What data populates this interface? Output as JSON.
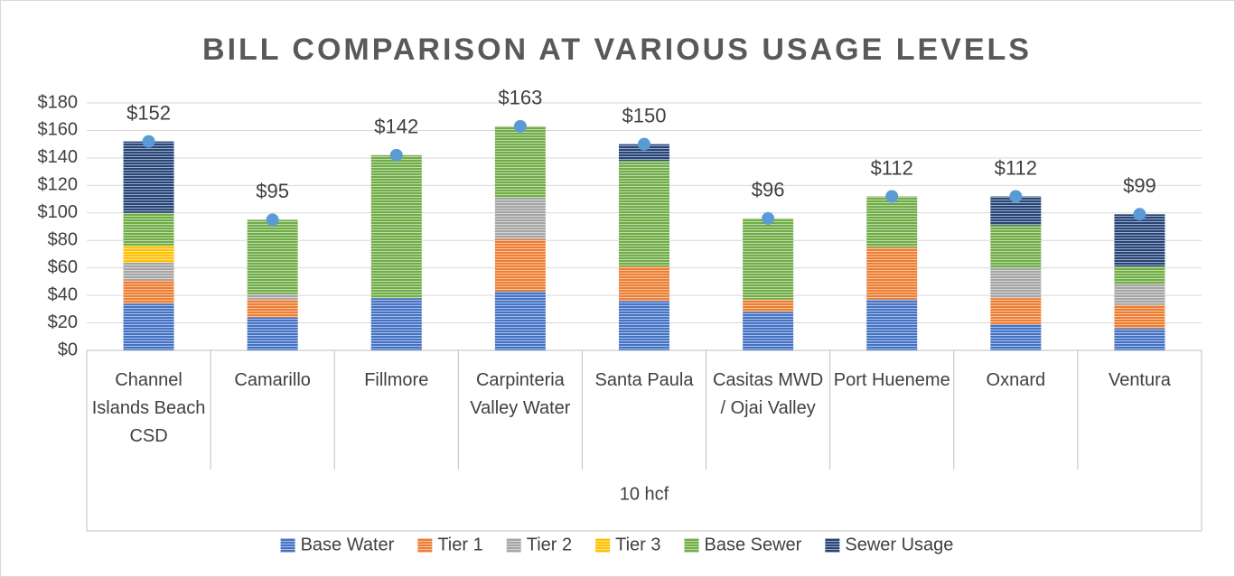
{
  "chart_data": {
    "type": "stacked_bar",
    "title": "BILL COMPARISON AT VARIOUS USAGE LEVELS",
    "group_label": "10 hcf",
    "categories": [
      "Channel Islands Beach CSD",
      "Camarillo",
      "Fillmore",
      "Carpinteria Valley Water",
      "Santa Paula",
      "Casitas MWD / Ojai Valley",
      "Port Hueneme",
      "Oxnard",
      "Ventura"
    ],
    "series": [
      {
        "name": "Base Water",
        "color": "#4472c4",
        "values": [
          34,
          24,
          38,
          43,
          36,
          28,
          37,
          19,
          16
        ]
      },
      {
        "name": "Tier 1",
        "color": "#ed7d31",
        "values": [
          17,
          13,
          0,
          38,
          25,
          9,
          38,
          19,
          17
        ]
      },
      {
        "name": "Tier 2",
        "color": "#a5a5a5",
        "values": [
          13,
          4,
          0,
          30,
          0,
          0,
          0,
          22,
          15
        ]
      },
      {
        "name": "Tier 3",
        "color": "#ffc000",
        "values": [
          12,
          0,
          0,
          0,
          0,
          0,
          0,
          0,
          0
        ]
      },
      {
        "name": "Base Sewer",
        "color": "#70ad47",
        "values": [
          24,
          54,
          104,
          52,
          77,
          59,
          37,
          31,
          13
        ]
      },
      {
        "name": "Sewer Usage",
        "color": "#264478",
        "values": [
          52,
          0,
          0,
          0,
          12,
          0,
          0,
          21,
          38
        ]
      }
    ],
    "totals": {
      "color": "#5b9bd5",
      "values": [
        152,
        95,
        142,
        163,
        150,
        96,
        112,
        112,
        99
      ],
      "value_labels": [
        "$152",
        "$95",
        "$142",
        "$163",
        "$150",
        "$96",
        "$112",
        "$112",
        "$99"
      ]
    },
    "ylim": [
      0,
      180
    ],
    "yticks": [
      {
        "value": 0,
        "label": "$0"
      },
      {
        "value": 20,
        "label": "$20"
      },
      {
        "value": 40,
        "label": "$40"
      },
      {
        "value": 60,
        "label": "$60"
      },
      {
        "value": 80,
        "label": "$80"
      },
      {
        "value": 100,
        "label": "$100"
      },
      {
        "value": 120,
        "label": "$120"
      },
      {
        "value": 140,
        "label": "$140"
      },
      {
        "value": 160,
        "label": "$160"
      },
      {
        "value": 180,
        "label": "$180"
      }
    ],
    "grid": true,
    "legend": "bottom"
  }
}
